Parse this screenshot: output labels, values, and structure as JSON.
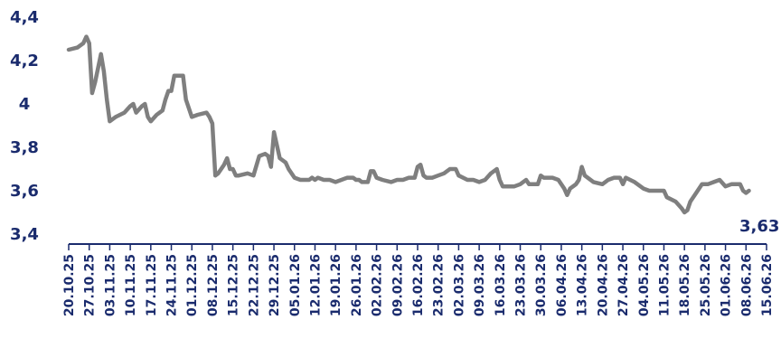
{
  "chart_data": {
    "type": "line",
    "ylim": [
      3.4,
      4.4
    ],
    "y_ticks": [
      "4,4",
      "4,2",
      "4",
      "3,8",
      "3,6",
      "3,4"
    ],
    "x_ticks": [
      "20.10.25",
      "27.10.25",
      "03.11.25",
      "10.11.25",
      "17.11.25",
      "24.11.25",
      "01.12.25",
      "08.12.25",
      "15.12.25",
      "22.12.25",
      "29.12.25",
      "05.01.26",
      "12.01.26",
      "19.01.26",
      "26.01.26",
      "02.02.26",
      "09.02.26",
      "16.02.26",
      "23.02.26",
      "02.03.26",
      "09.03.26",
      "16.03.26",
      "23.03.26",
      "30.03.26",
      "06.04.26",
      "13.04.26",
      "20.04.26",
      "27.04.26",
      "04.05.26",
      "11.05.26",
      "18.05.26",
      "25.05.26",
      "01.06.26",
      "08.06.26",
      "15.06.26"
    ],
    "end_label": "3,63",
    "series": [
      {
        "color": "#7f7f7f",
        "points": [
          [
            "20.10.25",
            4.25
          ],
          [
            "23.10.25",
            4.26
          ],
          [
            "25.10.25",
            4.28
          ],
          [
            "26.10.25",
            4.31
          ],
          [
            "27.10.25",
            4.28
          ],
          [
            "28.10.25",
            4.05
          ],
          [
            "29.10.25",
            4.1
          ],
          [
            "31.10.25",
            4.23
          ],
          [
            "01.11.25",
            4.15
          ],
          [
            "02.11.25",
            4.02
          ],
          [
            "03.11.25",
            3.92
          ],
          [
            "05.11.25",
            3.94
          ],
          [
            "08.11.25",
            3.96
          ],
          [
            "10.11.25",
            3.99
          ],
          [
            "11.11.25",
            4.0
          ],
          [
            "12.11.25",
            3.96
          ],
          [
            "14.11.25",
            3.99
          ],
          [
            "15.11.25",
            4.0
          ],
          [
            "16.11.25",
            3.94
          ],
          [
            "17.11.25",
            3.92
          ],
          [
            "19.11.25",
            3.95
          ],
          [
            "21.11.25",
            3.97
          ],
          [
            "22.11.25",
            4.02
          ],
          [
            "23.11.25",
            4.06
          ],
          [
            "24.11.25",
            4.06
          ],
          [
            "25.11.25",
            4.13
          ],
          [
            "28.11.25",
            4.13
          ],
          [
            "29.11.25",
            4.02
          ],
          [
            "01.12.25",
            3.94
          ],
          [
            "03.12.25",
            3.95
          ],
          [
            "06.12.25",
            3.96
          ],
          [
            "07.12.25",
            3.94
          ],
          [
            "08.12.25",
            3.91
          ],
          [
            "09.12.25",
            3.67
          ],
          [
            "10.12.25",
            3.68
          ],
          [
            "12.12.25",
            3.72
          ],
          [
            "13.12.25",
            3.75
          ],
          [
            "14.12.25",
            3.7
          ],
          [
            "15.12.25",
            3.7
          ],
          [
            "16.12.25",
            3.67
          ],
          [
            "17.12.25",
            3.67
          ],
          [
            "20.12.25",
            3.68
          ],
          [
            "22.12.25",
            3.67
          ],
          [
            "24.12.25",
            3.76
          ],
          [
            "26.12.25",
            3.77
          ],
          [
            "27.12.25",
            3.76
          ],
          [
            "28.12.25",
            3.71
          ],
          [
            "29.12.25",
            3.87
          ],
          [
            "30.12.25",
            3.81
          ],
          [
            "31.12.25",
            3.75
          ],
          [
            "02.01.26",
            3.73
          ],
          [
            "03.01.26",
            3.7
          ],
          [
            "05.01.26",
            3.66
          ],
          [
            "07.01.26",
            3.65
          ],
          [
            "10.01.26",
            3.65
          ],
          [
            "11.01.26",
            3.66
          ],
          [
            "12.01.26",
            3.65
          ],
          [
            "13.01.26",
            3.66
          ],
          [
            "15.01.26",
            3.65
          ],
          [
            "17.01.26",
            3.65
          ],
          [
            "19.01.26",
            3.64
          ],
          [
            "21.01.26",
            3.65
          ],
          [
            "23.01.26",
            3.66
          ],
          [
            "25.01.26",
            3.66
          ],
          [
            "26.01.26",
            3.65
          ],
          [
            "27.01.26",
            3.65
          ],
          [
            "28.01.26",
            3.64
          ],
          [
            "30.01.26",
            3.64
          ],
          [
            "31.01.26",
            3.69
          ],
          [
            "01.02.26",
            3.69
          ],
          [
            "02.02.26",
            3.66
          ],
          [
            "04.02.26",
            3.65
          ],
          [
            "07.02.26",
            3.64
          ],
          [
            "09.02.26",
            3.65
          ],
          [
            "11.02.26",
            3.65
          ],
          [
            "13.02.26",
            3.66
          ],
          [
            "15.02.26",
            3.66
          ],
          [
            "16.02.26",
            3.71
          ],
          [
            "17.02.26",
            3.72
          ],
          [
            "18.02.26",
            3.67
          ],
          [
            "19.02.26",
            3.66
          ],
          [
            "21.02.26",
            3.66
          ],
          [
            "23.02.26",
            3.67
          ],
          [
            "25.02.26",
            3.68
          ],
          [
            "27.02.26",
            3.7
          ],
          [
            "01.03.26",
            3.7
          ],
          [
            "02.03.26",
            3.67
          ],
          [
            "05.03.26",
            3.65
          ],
          [
            "07.03.26",
            3.65
          ],
          [
            "09.03.26",
            3.64
          ],
          [
            "11.03.26",
            3.65
          ],
          [
            "13.03.26",
            3.68
          ],
          [
            "15.03.26",
            3.7
          ],
          [
            "16.03.26",
            3.65
          ],
          [
            "17.03.26",
            3.62
          ],
          [
            "19.03.26",
            3.62
          ],
          [
            "21.03.26",
            3.62
          ],
          [
            "23.03.26",
            3.63
          ],
          [
            "25.03.26",
            3.65
          ],
          [
            "26.03.26",
            3.63
          ],
          [
            "29.03.26",
            3.63
          ],
          [
            "30.03.26",
            3.67
          ],
          [
            "31.03.26",
            3.66
          ],
          [
            "03.04.26",
            3.66
          ],
          [
            "05.04.26",
            3.65
          ],
          [
            "07.04.26",
            3.61
          ],
          [
            "08.04.26",
            3.58
          ],
          [
            "09.04.26",
            3.61
          ],
          [
            "11.04.26",
            3.63
          ],
          [
            "12.04.26",
            3.65
          ],
          [
            "13.04.26",
            3.71
          ],
          [
            "14.04.26",
            3.67
          ],
          [
            "17.04.26",
            3.64
          ],
          [
            "20.04.26",
            3.63
          ],
          [
            "22.04.26",
            3.65
          ],
          [
            "24.04.26",
            3.66
          ],
          [
            "26.04.26",
            3.66
          ],
          [
            "27.04.26",
            3.63
          ],
          [
            "28.04.26",
            3.66
          ],
          [
            "01.05.26",
            3.64
          ],
          [
            "04.05.26",
            3.61
          ],
          [
            "06.05.26",
            3.6
          ],
          [
            "09.05.26",
            3.6
          ],
          [
            "11.05.26",
            3.6
          ],
          [
            "12.05.26",
            3.57
          ],
          [
            "15.05.26",
            3.55
          ],
          [
            "17.05.26",
            3.52
          ],
          [
            "18.05.26",
            3.5
          ],
          [
            "19.05.26",
            3.51
          ],
          [
            "20.05.26",
            3.55
          ],
          [
            "22.05.26",
            3.59
          ],
          [
            "24.05.26",
            3.63
          ],
          [
            "26.05.26",
            3.63
          ],
          [
            "28.05.26",
            3.64
          ],
          [
            "30.05.26",
            3.65
          ],
          [
            "01.06.26",
            3.62
          ],
          [
            "03.06.26",
            3.63
          ],
          [
            "05.06.26",
            3.63
          ],
          [
            "06.06.26",
            3.63
          ],
          [
            "07.06.26",
            3.6
          ],
          [
            "08.06.26",
            3.59
          ],
          [
            "09.06.26",
            3.6
          ]
        ]
      }
    ]
  }
}
